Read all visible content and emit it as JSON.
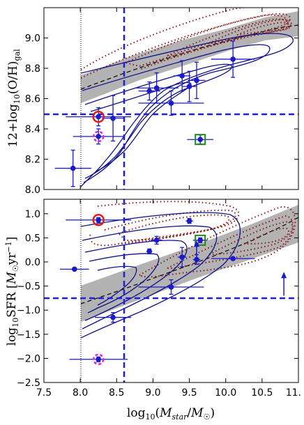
{
  "chart_data": [
    {
      "type": "scatter",
      "panel": "top",
      "ylabel": "12+log10(O/H)gal",
      "xlim": [
        7.5,
        11.0
      ],
      "ylim": [
        8.0,
        9.2
      ],
      "yticks": [
        8.0,
        8.2,
        8.4,
        8.6,
        8.8,
        9.0
      ],
      "ytick_labels": [
        "8.0",
        "8.2",
        "8.4",
        "8.6",
        "8.8",
        "9.0"
      ],
      "reference_lines": {
        "x_dashed": 8.6,
        "y_dashed": 8.5,
        "x_dotted": 8.0
      },
      "points": [
        {
          "x": 7.9,
          "y": 8.14,
          "xerr": 0.25,
          "yerr": 0.12
        },
        {
          "x": 8.25,
          "y": 8.48,
          "xerr": 0.45,
          "yerr": 0.06
        },
        {
          "x": 8.25,
          "y": 8.35,
          "xerr": 0.35,
          "yerr": 0.05
        },
        {
          "x": 8.45,
          "y": 8.47,
          "xerr": 0.15,
          "yerr": 0.15
        },
        {
          "x": 8.95,
          "y": 8.65,
          "xerr": 0.15,
          "yerr": 0.06
        },
        {
          "x": 9.05,
          "y": 8.67,
          "xerr": 0.3,
          "yerr": 0.1
        },
        {
          "x": 9.25,
          "y": 8.57,
          "xerr": 0.45,
          "yerr": 0.08
        },
        {
          "x": 9.4,
          "y": 8.75,
          "xerr": 0.12,
          "yerr": 0.1
        },
        {
          "x": 9.5,
          "y": 8.68,
          "xerr": 0.1,
          "yerr": 0.1
        },
        {
          "x": 9.6,
          "y": 8.72,
          "xerr": 0.12,
          "yerr": 0.12
        },
        {
          "x": 9.65,
          "y": 8.33,
          "xerr": 0.18,
          "yerr": 0.03
        },
        {
          "x": 10.1,
          "y": 8.86,
          "xerr": 0.3,
          "yerr": 0.12
        }
      ],
      "markers": {
        "red_circle": {
          "x": 8.25,
          "y": 8.48
        },
        "magenta_dashed_circle": {
          "x": 8.25,
          "y": 8.35
        },
        "green_square": {
          "x": 9.65,
          "y": 8.33
        }
      }
    },
    {
      "type": "scatter",
      "panel": "bottom",
      "xlabel": "log10(Mstar/M☉)",
      "ylabel": "log10SFR [M☉yr−1]",
      "xlim": [
        7.5,
        11.0
      ],
      "ylim": [
        -2.5,
        1.3
      ],
      "xticks": [
        7.5,
        8.0,
        8.5,
        9.0,
        9.5,
        10.0,
        10.5,
        11.0
      ],
      "xtick_labels": [
        "7.5",
        "8.0",
        "8.5",
        "9.0",
        "9.5",
        "10.0",
        "10.5",
        "11."
      ],
      "yticks": [
        -2.5,
        -2.0,
        -1.5,
        -1.0,
        -0.5,
        0.0,
        0.5,
        1.0
      ],
      "ytick_labels": [
        "−2.5",
        "−2.0",
        "−1.5",
        "−1.0",
        "−0.5",
        "0.0",
        "0.5",
        "1.0"
      ],
      "reference_lines": {
        "x_dashed": 8.6,
        "y_dashed": -0.7,
        "x_dotted": 8.0
      },
      "points": [
        {
          "x": 7.92,
          "y": -0.15,
          "xerr": 0.2,
          "yerr": 0.0
        },
        {
          "x": 8.25,
          "y": 0.87,
          "xerr": 0.45,
          "yerr": 0.05
        },
        {
          "x": 8.25,
          "y": -2.02,
          "xerr": 0.4,
          "yerr": 0.05
        },
        {
          "x": 8.45,
          "y": -1.15,
          "xerr": 0.25,
          "yerr": 0.1
        },
        {
          "x": 8.95,
          "y": 0.22,
          "xerr": 0.04,
          "yerr": 0.05
        },
        {
          "x": 9.05,
          "y": 0.45,
          "xerr": 0.08,
          "yerr": 0.08
        },
        {
          "x": 9.25,
          "y": -0.52,
          "xerr": 0.45,
          "yerr": 0.15
        },
        {
          "x": 9.4,
          "y": 0.1,
          "xerr": 0.06,
          "yerr": 0.2
        },
        {
          "x": 9.5,
          "y": 0.85,
          "xerr": 0.05,
          "yerr": 0.05
        },
        {
          "x": 9.6,
          "y": 0.05,
          "xerr": 0.05,
          "yerr": 0.1
        },
        {
          "x": 9.65,
          "y": 0.45,
          "xerr": 0.1,
          "yerr": 0.05
        },
        {
          "x": 10.1,
          "y": 0.07,
          "xerr": 0.3,
          "yerr": 0.0
        }
      ],
      "markers": {
        "red_circle": {
          "x": 8.25,
          "y": 0.87
        },
        "magenta_dashed_circle": {
          "x": 8.25,
          "y": -2.02
        },
        "green_square": {
          "x": 9.65,
          "y": 0.45
        }
      },
      "arrows": [
        {
          "x": 9.6,
          "y": 0.05,
          "dy": 0.35
        },
        {
          "x": 10.8,
          "y": -0.7,
          "dy": 0.45
        }
      ]
    }
  ],
  "colors": {
    "points": "#1a1acc",
    "dashed_lines": "#1f1fdd",
    "contour_blue": "#10108a",
    "contour_red": "#8b1a1a",
    "band_gray": "#b3b3b3",
    "red_marker": "#e21a1a",
    "magenta_marker": "#e020e0",
    "green_marker": "#1c8a1c"
  }
}
